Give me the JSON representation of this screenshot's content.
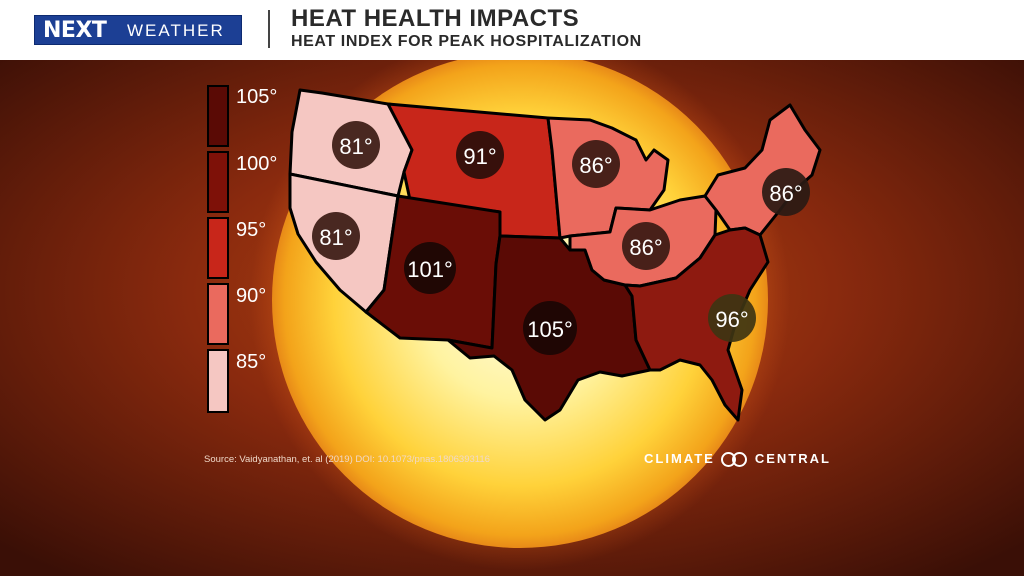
{
  "header": {
    "logo_next": "NEXT",
    "logo_weather": "WEATHER",
    "title": "HEAT HEALTH IMPACTS",
    "subtitle": "HEAT INDEX FOR PEAK HOSPITALIZATION"
  },
  "legend": {
    "items": [
      {
        "label": "105°",
        "color": "#5a0a05"
      },
      {
        "label": "100°",
        "color": "#7e1108"
      },
      {
        "label": "95°",
        "color": "#c8261a"
      },
      {
        "label": "90°",
        "color": "#ea6a5e"
      },
      {
        "label": "85°",
        "color": "#f5c7c2"
      }
    ]
  },
  "regions": [
    {
      "name": "northwest",
      "value": "81°",
      "color": "#f5c7c2"
    },
    {
      "name": "west",
      "value": "81°",
      "color": "#f5c7c2"
    },
    {
      "name": "northern-rockies",
      "value": "91°",
      "color": "#c8261a"
    },
    {
      "name": "southwest",
      "value": "101°",
      "color": "#6a0d06"
    },
    {
      "name": "south",
      "value": "105°",
      "color": "#5a0a05"
    },
    {
      "name": "upper-midwest",
      "value": "86°",
      "color": "#ea6a5e"
    },
    {
      "name": "ohio-valley",
      "value": "86°",
      "color": "#ea6a5e"
    },
    {
      "name": "northeast",
      "value": "86°",
      "color": "#ea6a5e"
    },
    {
      "name": "southeast",
      "value": "96°",
      "color": "#8e1a10"
    }
  ],
  "source": "Source: Vaidyanathan, et. al (2019) DOI: 10.1073/pnas.1806393116",
  "brand": {
    "left": "CLIMATE",
    "right": "CENTRAL"
  }
}
